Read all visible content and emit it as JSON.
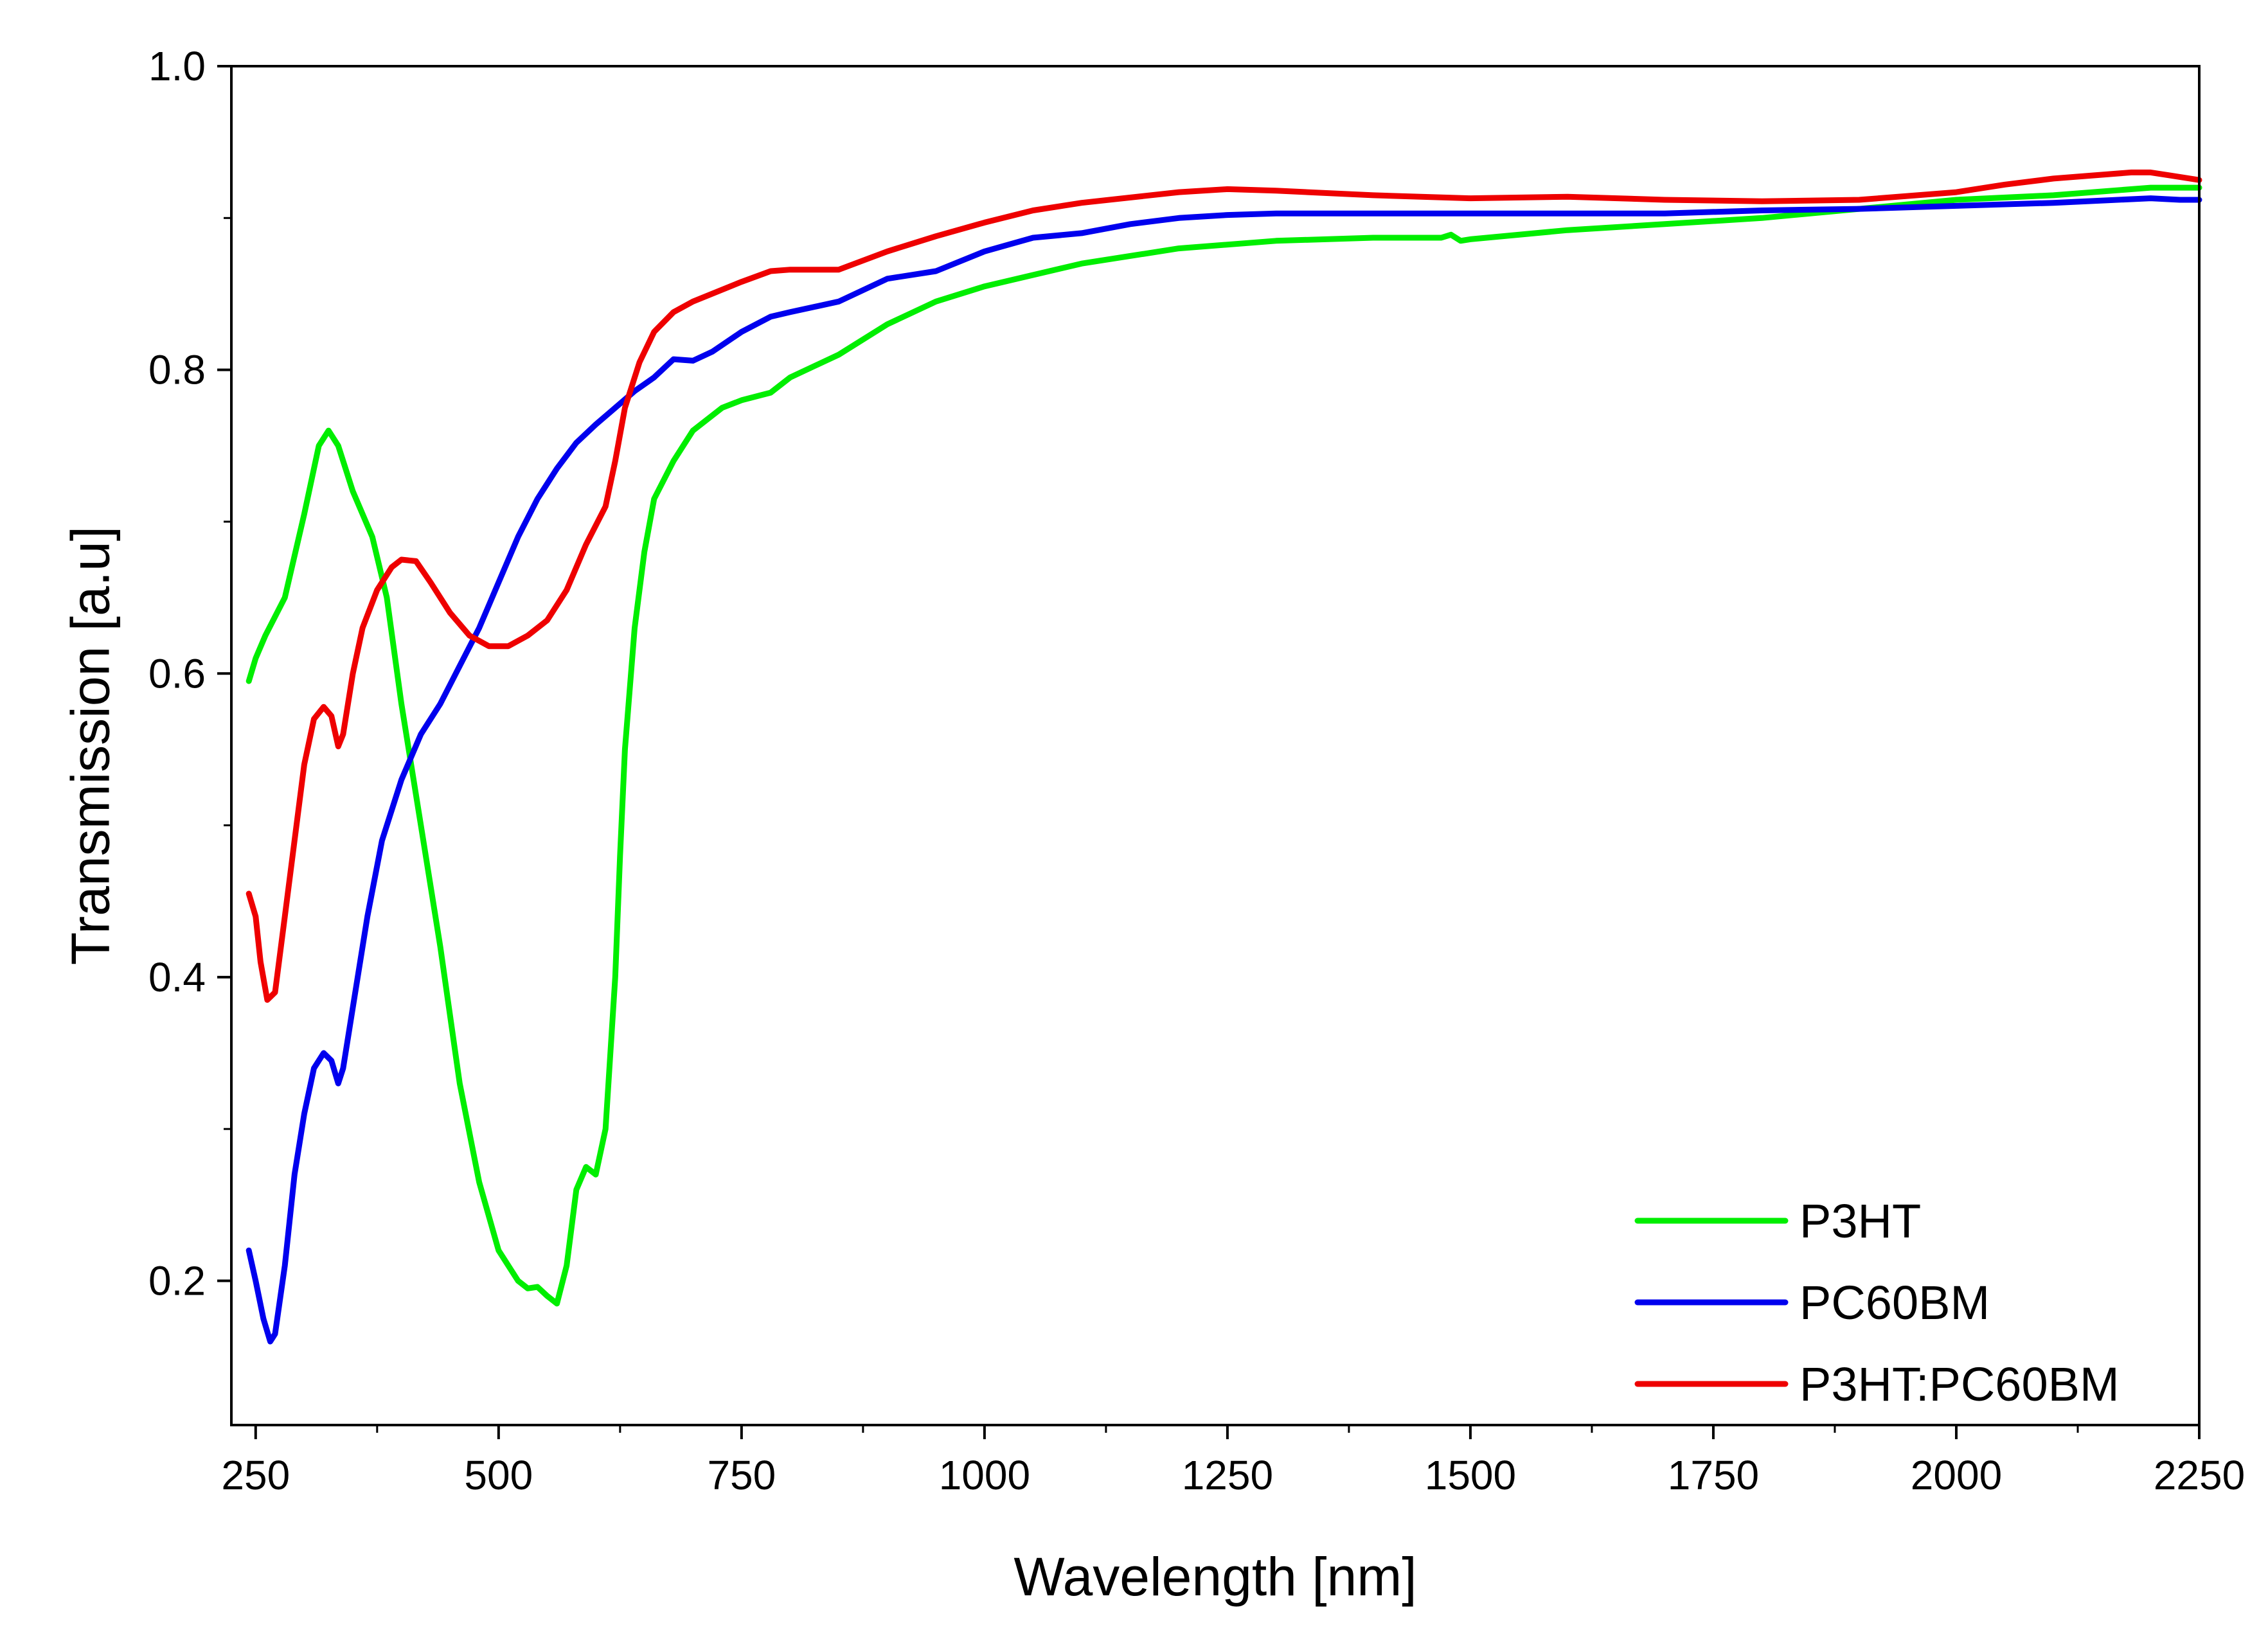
{
  "chart_data": {
    "type": "line",
    "title": "",
    "xlabel": "Wavelength [nm]",
    "ylabel": "Transmission [a.u]",
    "xlim": [
      225,
      2250
    ],
    "ylim": [
      0.105,
      1.0
    ],
    "x_ticks": [
      250,
      500,
      750,
      1000,
      1250,
      1500,
      1750,
      2000,
      2250
    ],
    "x_minor_ticks": [
      375,
      625,
      875,
      1125,
      1375,
      1625,
      1875,
      2125
    ],
    "y_ticks": [
      0.2,
      0.4,
      0.6,
      0.8,
      1.0
    ],
    "y_minor_ticks": [
      0.3,
      0.5,
      0.7,
      0.9
    ],
    "grid": false,
    "legend_position": "bottom-right",
    "series": [
      {
        "name": "P3HT",
        "color": "#00ee00",
        "x": [
          243,
          250,
          260,
          280,
          300,
          315,
          325,
          335,
          350,
          370,
          385,
          400,
          420,
          440,
          460,
          480,
          500,
          520,
          530,
          540,
          550,
          560,
          570,
          580,
          590,
          600,
          610,
          620,
          625,
          630,
          640,
          650,
          660,
          680,
          700,
          730,
          750,
          780,
          800,
          850,
          900,
          950,
          1000,
          1100,
          1200,
          1300,
          1400,
          1470,
          1480,
          1490,
          1500,
          1600,
          1700,
          1800,
          1900,
          2000,
          2100,
          2200,
          2250
        ],
        "values": [
          0.595,
          0.61,
          0.625,
          0.65,
          0.705,
          0.75,
          0.76,
          0.75,
          0.72,
          0.69,
          0.65,
          0.58,
          0.5,
          0.42,
          0.33,
          0.265,
          0.22,
          0.2,
          0.195,
          0.196,
          0.19,
          0.185,
          0.21,
          0.26,
          0.275,
          0.27,
          0.3,
          0.4,
          0.48,
          0.55,
          0.63,
          0.68,
          0.715,
          0.74,
          0.76,
          0.775,
          0.78,
          0.785,
          0.795,
          0.81,
          0.83,
          0.845,
          0.855,
          0.87,
          0.88,
          0.885,
          0.887,
          0.887,
          0.889,
          0.885,
          0.886,
          0.892,
          0.896,
          0.9,
          0.906,
          0.912,
          0.915,
          0.92,
          0.92
        ]
      },
      {
        "name": "PC60BM",
        "color": "#0000ee",
        "x": [
          243,
          250,
          258,
          265,
          270,
          280,
          290,
          300,
          310,
          320,
          328,
          335,
          340,
          350,
          365,
          380,
          400,
          420,
          440,
          460,
          480,
          500,
          520,
          540,
          560,
          580,
          600,
          620,
          640,
          660,
          680,
          700,
          720,
          750,
          780,
          800,
          850,
          900,
          950,
          1000,
          1050,
          1100,
          1150,
          1200,
          1250,
          1300,
          1400,
          1500,
          1600,
          1700,
          1800,
          1900,
          2000,
          2100,
          2200,
          2230,
          2250
        ],
        "values": [
          0.22,
          0.2,
          0.175,
          0.16,
          0.165,
          0.21,
          0.27,
          0.31,
          0.34,
          0.35,
          0.345,
          0.33,
          0.34,
          0.38,
          0.44,
          0.49,
          0.53,
          0.56,
          0.58,
          0.605,
          0.63,
          0.66,
          0.69,
          0.715,
          0.735,
          0.752,
          0.764,
          0.775,
          0.786,
          0.795,
          0.807,
          0.806,
          0.812,
          0.825,
          0.835,
          0.838,
          0.845,
          0.86,
          0.865,
          0.878,
          0.887,
          0.89,
          0.896,
          0.9,
          0.902,
          0.903,
          0.903,
          0.903,
          0.903,
          0.903,
          0.905,
          0.906,
          0.908,
          0.91,
          0.913,
          0.912,
          0.912
        ]
      },
      {
        "name": "P3HT:PC60BM",
        "color": "#ee0000",
        "x": [
          243,
          250,
          255,
          262,
          270,
          280,
          290,
          300,
          310,
          320,
          328,
          335,
          340,
          350,
          360,
          375,
          390,
          400,
          415,
          430,
          450,
          470,
          490,
          510,
          530,
          550,
          570,
          590,
          610,
          620,
          630,
          645,
          660,
          680,
          700,
          750,
          780,
          800,
          850,
          900,
          950,
          1000,
          1050,
          1100,
          1200,
          1250,
          1300,
          1400,
          1500,
          1600,
          1700,
          1800,
          1900,
          2000,
          2050,
          2100,
          2180,
          2200,
          2220,
          2250
        ],
        "values": [
          0.455,
          0.44,
          0.41,
          0.385,
          0.39,
          0.44,
          0.49,
          0.54,
          0.57,
          0.578,
          0.572,
          0.552,
          0.56,
          0.6,
          0.63,
          0.655,
          0.67,
          0.675,
          0.674,
          0.66,
          0.64,
          0.625,
          0.618,
          0.618,
          0.625,
          0.635,
          0.655,
          0.685,
          0.71,
          0.74,
          0.775,
          0.805,
          0.825,
          0.838,
          0.845,
          0.858,
          0.865,
          0.866,
          0.866,
          0.878,
          0.888,
          0.897,
          0.905,
          0.91,
          0.917,
          0.919,
          0.918,
          0.915,
          0.913,
          0.914,
          0.912,
          0.911,
          0.912,
          0.917,
          0.922,
          0.926,
          0.93,
          0.93,
          0.928,
          0.925
        ]
      }
    ]
  }
}
